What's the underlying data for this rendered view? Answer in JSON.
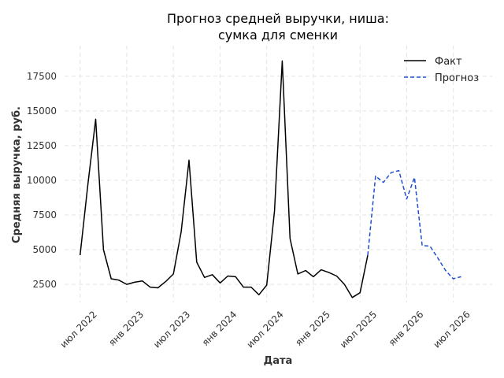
{
  "chart_data": {
    "type": "line",
    "title_lines": [
      "Прогноз средней выручки, ниша:",
      "сумка для сменки"
    ],
    "xlabel": "Дата",
    "ylabel": "Средняя выручка, руб.",
    "y_ticks": [
      2500,
      5000,
      7500,
      10000,
      12500,
      15000,
      17500
    ],
    "y_tick_labels": [
      "2500",
      "5000",
      "7500",
      "10000",
      "12500",
      "15000",
      "17500"
    ],
    "ylim": [
      1200,
      19700
    ],
    "x_tick_labels": [
      "июл 2022",
      "янв 2023",
      "июл 2023",
      "янв 2024",
      "июл 2024",
      "янв 2025",
      "июл 2025",
      "янв 2026",
      "июл 2026"
    ],
    "x_range_months": [
      "2022-05",
      "2026-12"
    ],
    "grid": true,
    "legend_position": "top-right",
    "series": [
      {
        "name": "Факт",
        "style": "solid",
        "color": "#000000",
        "x": [
          "2022-07",
          "2022-08",
          "2022-09",
          "2022-10",
          "2022-11",
          "2022-12",
          "2023-01",
          "2023-02",
          "2023-03",
          "2023-04",
          "2023-05",
          "2023-06",
          "2023-07",
          "2023-08",
          "2023-09",
          "2023-10",
          "2023-11",
          "2023-12",
          "2024-01",
          "2024-02",
          "2024-03",
          "2024-04",
          "2024-05",
          "2024-06",
          "2024-07",
          "2024-08",
          "2024-09",
          "2024-10",
          "2024-11",
          "2024-12",
          "2025-01",
          "2025-02",
          "2025-03",
          "2025-04",
          "2025-05",
          "2025-06",
          "2025-07",
          "2025-08"
        ],
        "values": [
          4600,
          9700,
          14400,
          5000,
          2900,
          2800,
          2500,
          2650,
          2750,
          2300,
          2250,
          2700,
          3250,
          6300,
          11450,
          4100,
          3000,
          3200,
          2600,
          3100,
          3050,
          2300,
          2300,
          1750,
          2450,
          7800,
          18600,
          5800,
          3250,
          3500,
          3050,
          3550,
          3350,
          3100,
          2500,
          1550,
          1900,
          4600
        ]
      },
      {
        "name": "Прогноз",
        "style": "dashed",
        "color": "#1f4fd0",
        "x": [
          "2025-08",
          "2025-09",
          "2025-10",
          "2025-11",
          "2025-12",
          "2026-01",
          "2026-02",
          "2026-03",
          "2026-04",
          "2026-05",
          "2026-06",
          "2026-07",
          "2026-08"
        ],
        "values": [
          4600,
          10300,
          9850,
          10550,
          10700,
          8650,
          10200,
          5300,
          5250,
          4400,
          3500,
          2900,
          3050
        ]
      }
    ]
  }
}
